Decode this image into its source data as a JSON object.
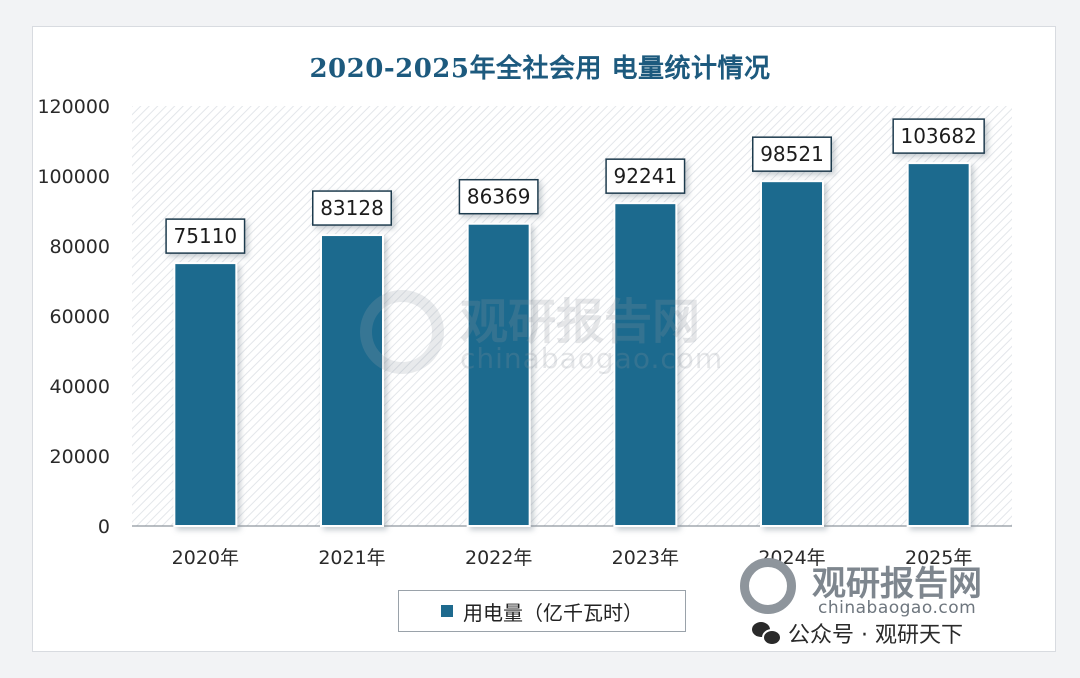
{
  "chart_data": {
    "type": "bar",
    "title": "2020-2025年全社会用 电量统计情况",
    "categories": [
      "2020年",
      "2021年",
      "2022年",
      "2023年",
      "2024年",
      "2025年"
    ],
    "series": [
      {
        "name": "用电量（亿千瓦时）",
        "values": [
          75110,
          83128,
          86369,
          92241,
          98521,
          103682
        ]
      }
    ],
    "y_ticks": [
      "0",
      "20000",
      "40000",
      "60000",
      "80000",
      "100000",
      "120000"
    ],
    "ylim": [
      0,
      120000
    ],
    "data_labels": [
      "75110",
      "83128",
      "86369",
      "92241",
      "98521",
      "103682"
    ],
    "legend_position": "bottom",
    "grid": false,
    "colors": {
      "bar": "#1e6a8e",
      "bar_shadow": "#b9c3cc",
      "plot_hatch": "#e3e6ea",
      "title": "#1d5a7e"
    }
  },
  "watermark": {
    "cn": "观研报告网",
    "en": "chinabaogao.com"
  },
  "brand": {
    "cn": "观研报告网",
    "en": "chinabaogao.com"
  },
  "footer": {
    "wechat_text": "公众号 · 观研天下"
  }
}
